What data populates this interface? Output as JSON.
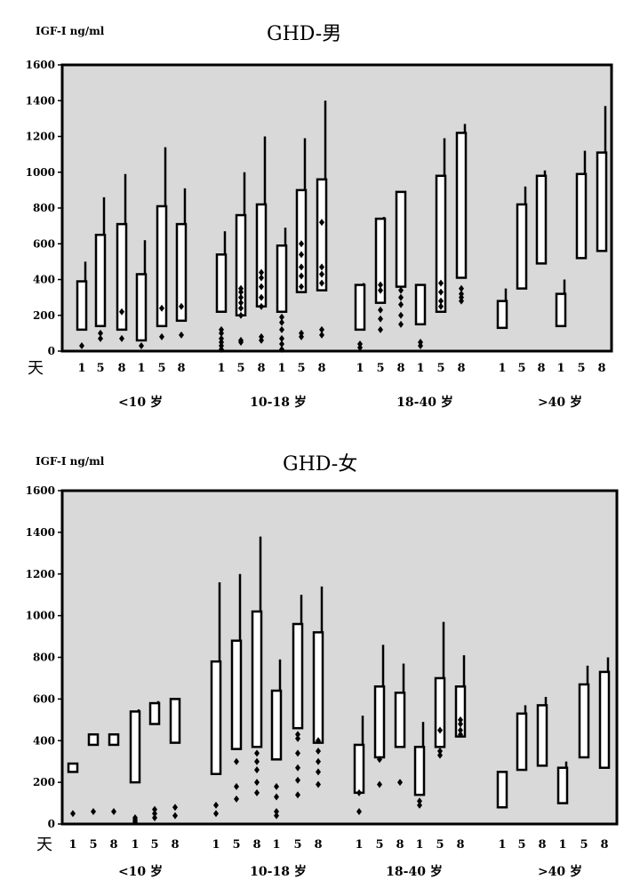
{
  "chart_data": [
    {
      "type": "box",
      "title": "GHD-男",
      "ylabel": "IGF-I ng/ml",
      "ylim": [
        0,
        1600
      ],
      "yticks": [
        0,
        200,
        400,
        600,
        800,
        1000,
        1200,
        1400,
        1600
      ],
      "day_axis_label": "天",
      "groups": [
        "<10 岁",
        "10-18 岁",
        "18-40 岁",
        ">40 岁"
      ],
      "days": [
        "1",
        "5",
        "8"
      ],
      "boxes": [
        {
          "group": "<10 岁",
          "day": "1",
          "q1": 120,
          "q3": 390,
          "max": 500,
          "outliers": [
            30
          ]
        },
        {
          "group": "<10 岁",
          "day": "5",
          "q1": 140,
          "q3": 650,
          "max": 860,
          "outliers": [
            70,
            100
          ]
        },
        {
          "group": "<10 岁",
          "day": "8",
          "q1": 120,
          "q3": 710,
          "max": 990,
          "outliers": [
            70,
            220
          ]
        },
        {
          "group": "<10 岁",
          "day": "1",
          "q1": 60,
          "q3": 430,
          "max": 620,
          "outliers": [
            30
          ]
        },
        {
          "group": "<10 岁",
          "day": "5",
          "q1": 140,
          "q3": 810,
          "max": 1140,
          "outliers": [
            80,
            240
          ]
        },
        {
          "group": "<10 岁",
          "day": "8",
          "q1": 170,
          "q3": 710,
          "max": 910,
          "outliers": [
            90,
            250
          ]
        },
        {
          "group": "10-18 岁",
          "day": "1",
          "q1": 220,
          "q3": 540,
          "max": 670,
          "outliers": [
            10,
            30,
            50,
            70,
            100,
            120
          ]
        },
        {
          "group": "10-18 岁",
          "day": "5",
          "q1": 200,
          "q3": 760,
          "max": 1000,
          "outliers": [
            50,
            60,
            200,
            240,
            270,
            300,
            330,
            350
          ]
        },
        {
          "group": "10-18 岁",
          "day": "8",
          "q1": 250,
          "q3": 820,
          "max": 1200,
          "outliers": [
            60,
            80,
            250,
            300,
            360,
            410,
            440
          ]
        },
        {
          "group": "10-18 岁",
          "day": "1",
          "q1": 220,
          "q3": 590,
          "max": 690,
          "outliers": [
            10,
            40,
            70,
            120,
            160,
            190
          ]
        },
        {
          "group": "10-18 岁",
          "day": "5",
          "q1": 330,
          "q3": 900,
          "max": 1190,
          "outliers": [
            80,
            100,
            360,
            420,
            470,
            540,
            600
          ]
        },
        {
          "group": "10-18 岁",
          "day": "8",
          "q1": 340,
          "q3": 960,
          "max": 1400,
          "outliers": [
            90,
            120,
            380,
            430,
            470,
            720
          ]
        },
        {
          "group": "18-40 岁",
          "day": "1",
          "q1": 120,
          "q3": 370,
          "max": 380,
          "outliers": [
            20,
            40
          ]
        },
        {
          "group": "18-40 岁",
          "day": "5",
          "q1": 270,
          "q3": 740,
          "max": 750,
          "outliers": [
            120,
            180,
            230,
            340,
            370
          ]
        },
        {
          "group": "18-40 岁",
          "day": "8",
          "q1": 360,
          "q3": 890,
          "max": 890,
          "outliers": [
            150,
            200,
            260,
            300,
            340
          ]
        },
        {
          "group": "18-40 岁",
          "day": "1",
          "q1": 150,
          "q3": 370,
          "max": 370,
          "outliers": [
            30,
            50
          ]
        },
        {
          "group": "18-40 岁",
          "day": "5",
          "q1": 220,
          "q3": 980,
          "max": 1190,
          "outliers": [
            250,
            280,
            330,
            380
          ]
        },
        {
          "group": "18-40 岁",
          "day": "8",
          "q1": 410,
          "q3": 1220,
          "max": 1270,
          "outliers": [
            280,
            300,
            320,
            350
          ]
        },
        {
          "group": ">40 岁",
          "day": "1",
          "q1": 130,
          "q3": 280,
          "max": 350,
          "outliers": []
        },
        {
          "group": ">40 岁",
          "day": "5",
          "q1": 350,
          "q3": 820,
          "max": 920,
          "outliers": []
        },
        {
          "group": ">40 岁",
          "day": "8",
          "q1": 490,
          "q3": 980,
          "max": 1010,
          "outliers": []
        },
        {
          "group": ">40 岁",
          "day": "1",
          "q1": 140,
          "q3": 320,
          "max": 400,
          "outliers": []
        },
        {
          "group": ">40 岁",
          "day": "5",
          "q1": 520,
          "q3": 990,
          "max": 1120,
          "outliers": []
        },
        {
          "group": ">40 岁",
          "day": "8",
          "q1": 560,
          "q3": 1110,
          "max": 1370,
          "outliers": []
        }
      ]
    },
    {
      "type": "box",
      "title": "GHD-女",
      "ylabel": "IGF-I ng/ml",
      "ylim": [
        0,
        1600
      ],
      "yticks": [
        0,
        200,
        400,
        600,
        800,
        1000,
        1200,
        1400,
        1600
      ],
      "day_axis_label": "天",
      "groups": [
        "<10 岁",
        "10-18 岁",
        "18-40 岁",
        ">40 岁"
      ],
      "days": [
        "1",
        "5",
        "8"
      ],
      "boxes": [
        {
          "group": "<10 岁",
          "day": "1",
          "q1": 250,
          "q3": 290,
          "max": 290,
          "outliers": [
            50
          ]
        },
        {
          "group": "<10 岁",
          "day": "5",
          "q1": 380,
          "q3": 430,
          "max": 430,
          "outliers": [
            60
          ]
        },
        {
          "group": "<10 岁",
          "day": "8",
          "q1": 380,
          "q3": 430,
          "max": 430,
          "outliers": [
            60
          ]
        },
        {
          "group": "<10 岁",
          "day": "1",
          "q1": 200,
          "q3": 540,
          "max": 550,
          "outliers": [
            10,
            20,
            30
          ]
        },
        {
          "group": "<10 岁",
          "day": "5",
          "q1": 480,
          "q3": 580,
          "max": 590,
          "outliers": [
            30,
            50,
            70
          ]
        },
        {
          "group": "<10 岁",
          "day": "8",
          "q1": 390,
          "q3": 600,
          "max": 600,
          "outliers": [
            40,
            80
          ]
        },
        {
          "group": "10-18 岁",
          "day": "1",
          "q1": 240,
          "q3": 780,
          "max": 1160,
          "outliers": [
            50,
            90
          ]
        },
        {
          "group": "10-18 岁",
          "day": "5",
          "q1": 360,
          "q3": 880,
          "max": 1200,
          "outliers": [
            120,
            180,
            300
          ]
        },
        {
          "group": "10-18 岁",
          "day": "8",
          "q1": 370,
          "q3": 1020,
          "max": 1380,
          "outliers": [
            150,
            200,
            260,
            300,
            340
          ]
        },
        {
          "group": "10-18 岁",
          "day": "1",
          "q1": 310,
          "q3": 640,
          "max": 790,
          "outliers": [
            40,
            60,
            130,
            180
          ]
        },
        {
          "group": "10-18 岁",
          "day": "5",
          "q1": 460,
          "q3": 960,
          "max": 1100,
          "outliers": [
            140,
            210,
            270,
            340,
            410,
            430
          ]
        },
        {
          "group": "10-18 岁",
          "day": "8",
          "q1": 390,
          "q3": 920,
          "max": 1140,
          "outliers": [
            190,
            250,
            300,
            350,
            400
          ]
        },
        {
          "group": "18-40 岁",
          "day": "1",
          "q1": 150,
          "q3": 380,
          "max": 520,
          "outliers": [
            60,
            150
          ]
        },
        {
          "group": "18-40 岁",
          "day": "5",
          "q1": 320,
          "q3": 660,
          "max": 860,
          "outliers": [
            190,
            310
          ]
        },
        {
          "group": "18-40 岁",
          "day": "8",
          "q1": 370,
          "q3": 630,
          "max": 770,
          "outliers": [
            200
          ]
        },
        {
          "group": "18-40 岁",
          "day": "1",
          "q1": 140,
          "q3": 370,
          "max": 490,
          "outliers": [
            90,
            110
          ]
        },
        {
          "group": "18-40 岁",
          "day": "5",
          "q1": 370,
          "q3": 700,
          "max": 970,
          "outliers": [
            330,
            350,
            450
          ]
        },
        {
          "group": "18-40 岁",
          "day": "8",
          "q1": 420,
          "q3": 660,
          "max": 810,
          "outliers": [
            430,
            450,
            480,
            500
          ]
        },
        {
          "group": ">40 岁",
          "day": "1",
          "q1": 80,
          "q3": 250,
          "max": 250,
          "outliers": []
        },
        {
          "group": ">40 岁",
          "day": "5",
          "q1": 260,
          "q3": 530,
          "max": 570,
          "outliers": []
        },
        {
          "group": ">40 岁",
          "day": "8",
          "q1": 280,
          "q3": 570,
          "max": 610,
          "outliers": []
        },
        {
          "group": ">40 岁",
          "day": "1",
          "q1": 100,
          "q3": 270,
          "max": 300,
          "outliers": []
        },
        {
          "group": ">40 岁",
          "day": "5",
          "q1": 320,
          "q3": 670,
          "max": 760,
          "outliers": []
        },
        {
          "group": ">40 岁",
          "day": "8",
          "q1": 270,
          "q3": 730,
          "max": 800,
          "outliers": []
        }
      ]
    }
  ]
}
